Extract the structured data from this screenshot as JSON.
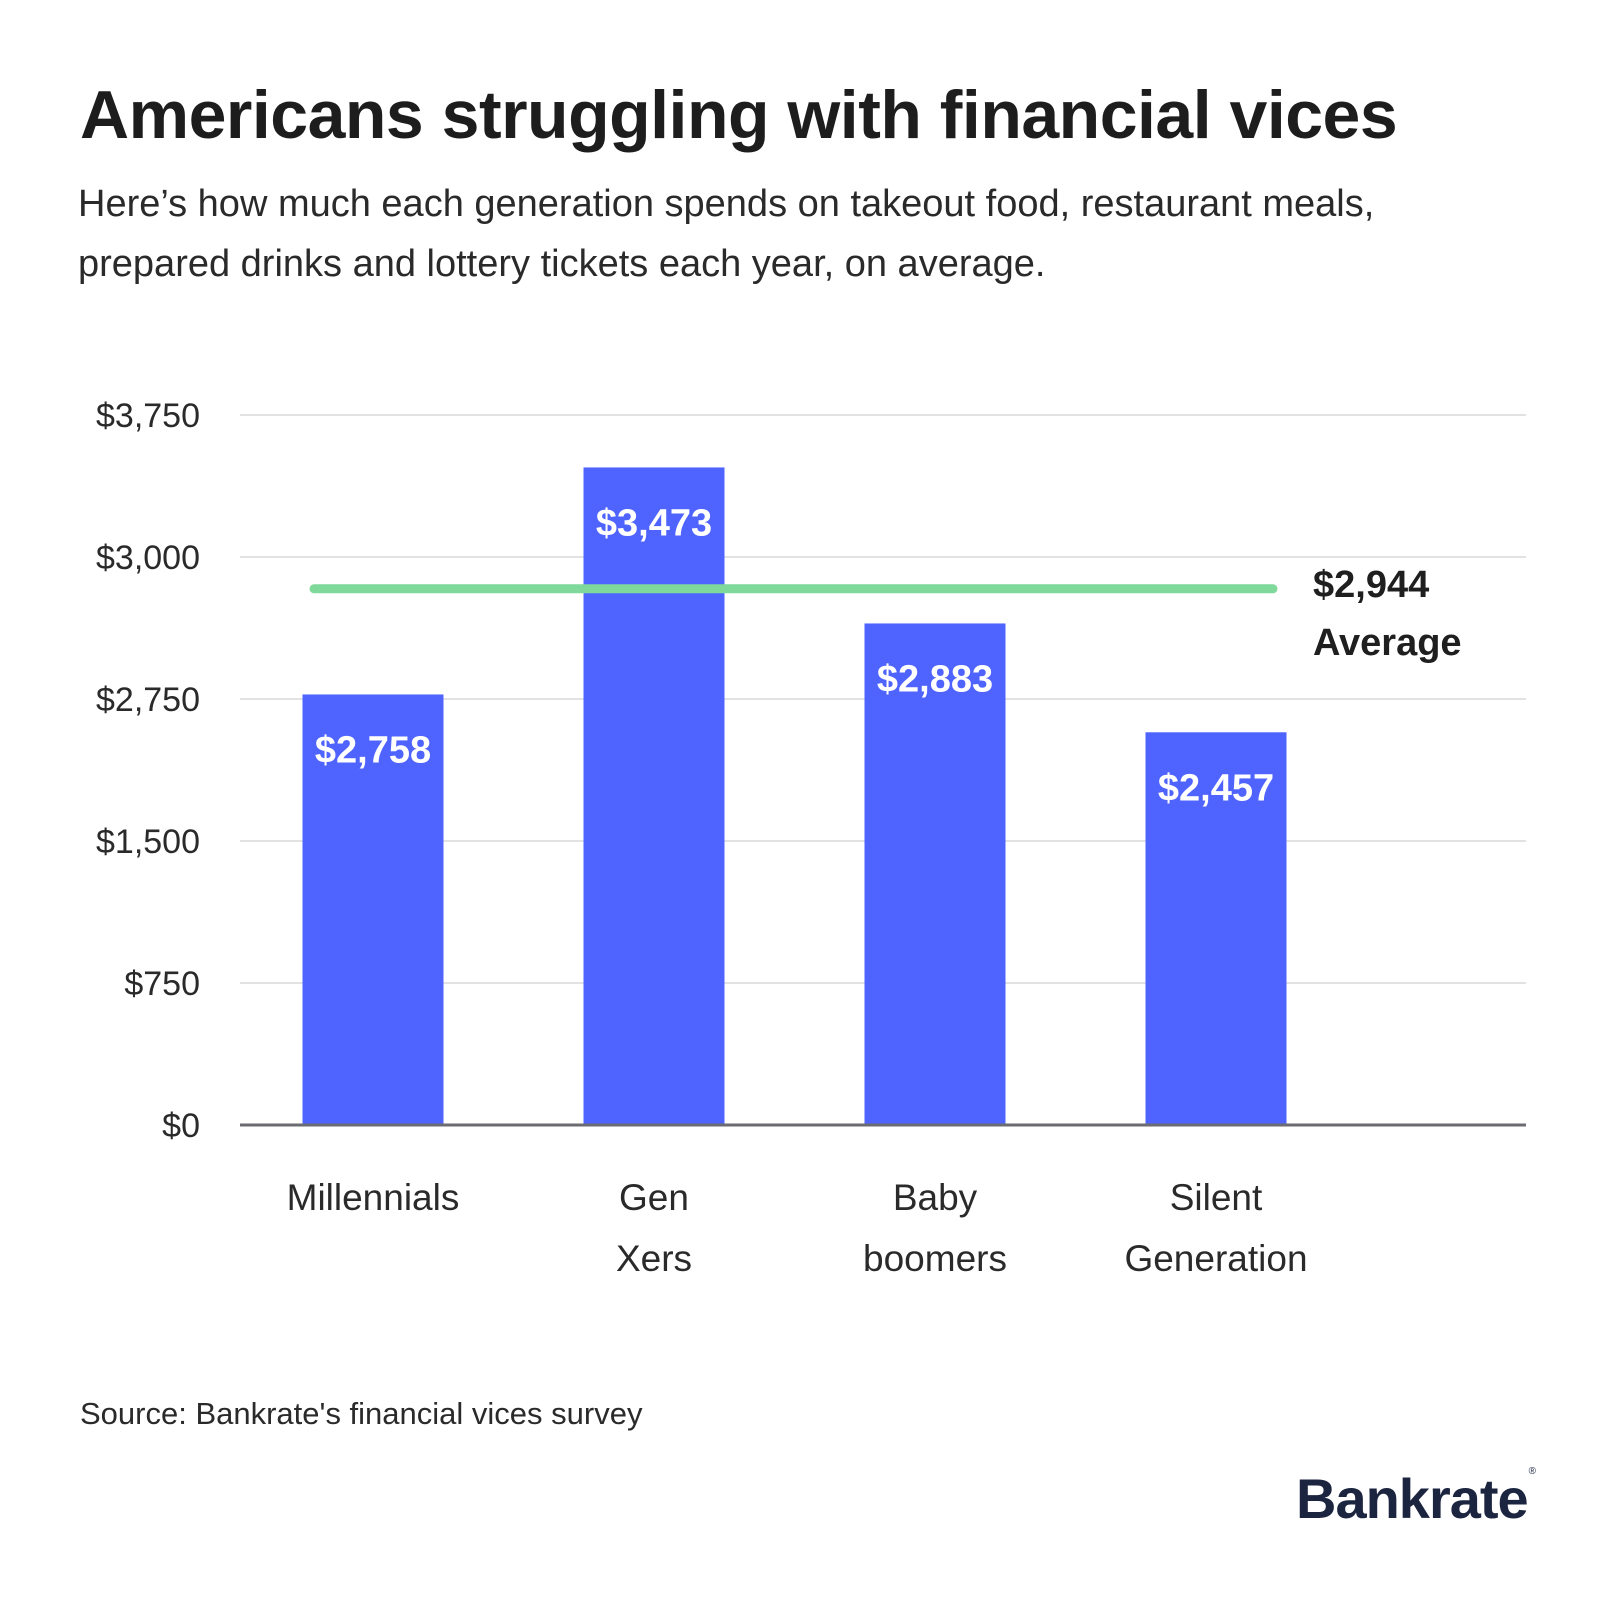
{
  "header": {
    "title": "Americans struggling with financial vices",
    "subtitle_line1": "Here’s how much each generation spends on takeout food, restaurant meals,",
    "subtitle_line2": "prepared drinks and lottery tickets each year, on average."
  },
  "chart_data": {
    "type": "bar",
    "categories": [
      [
        "Millennials"
      ],
      [
        "Gen",
        "Xers"
      ],
      [
        "Baby",
        "boomers"
      ],
      [
        "Silent",
        "Generation"
      ]
    ],
    "values": [
      2758,
      3473,
      2883,
      2457
    ],
    "data_labels": [
      "$2,758",
      "$3,473",
      "$2,883",
      "$2,457"
    ],
    "y_ticks": [
      0,
      750,
      1500,
      2750,
      3000,
      3750
    ],
    "y_tick_labels": [
      "$0",
      "$750",
      "$1,500",
      "$2,750",
      "$3,000",
      "$3,750"
    ],
    "average": {
      "value": 2944,
      "label_value": "$2,944",
      "label_text": "Average"
    },
    "grid": true,
    "colors": {
      "bar": "#4f64ff",
      "average_line": "#7fd99a",
      "grid": "#d9d9d9",
      "axis": "#6b6b72",
      "bar_label": "#ffffff"
    }
  },
  "footer": {
    "source": "Source: Bankrate's financial vices survey",
    "brand": "Bankrate",
    "brand_mark": "®"
  }
}
